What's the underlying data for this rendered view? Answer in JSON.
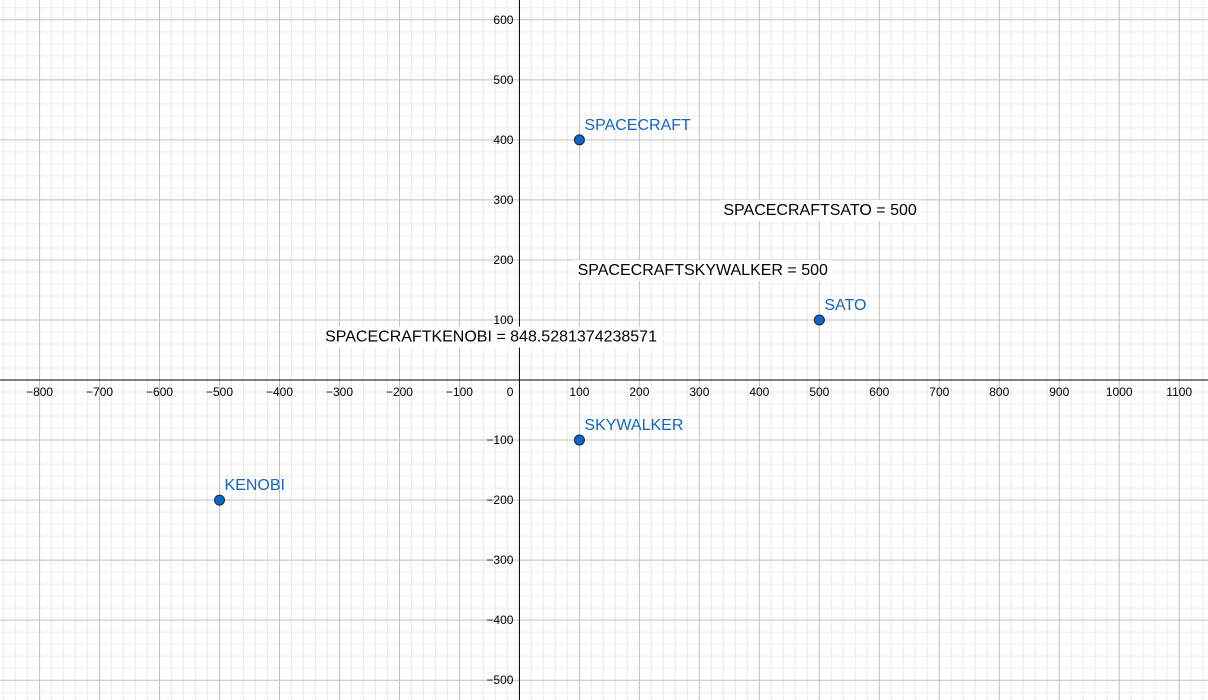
{
  "chart_data": {
    "type": "scatter",
    "title": "",
    "xlabel": "",
    "ylabel": "",
    "xlim": [
      -866,
      1148
    ],
    "ylim": [
      -533,
      633
    ],
    "grid": true,
    "x_ticks": [
      -800,
      -700,
      -600,
      -500,
      -400,
      -300,
      -200,
      -100,
      0,
      100,
      200,
      300,
      400,
      500,
      600,
      700,
      800,
      900,
      1000,
      1100
    ],
    "y_ticks": [
      -500,
      -400,
      -300,
      -200,
      -100,
      100,
      200,
      300,
      400,
      500,
      600
    ],
    "points": [
      {
        "label": "SPACECRAFT",
        "x": 100,
        "y": 400
      },
      {
        "label": "SATO",
        "x": 500,
        "y": 100
      },
      {
        "label": "SKYWALKER",
        "x": 100,
        "y": -100
      },
      {
        "label": "KENOBI",
        "x": -500,
        "y": -200
      }
    ],
    "annotations": [
      {
        "text": "SPACECRAFTSATO = 500",
        "x": 340,
        "y": 275
      },
      {
        "text": "SPACECRAFTSKYWALKER = 500",
        "x": 97,
        "y": 175
      },
      {
        "text": "SPACECRAFTKENOBI = 848.5281374238571",
        "x": -324,
        "y": 64
      }
    ],
    "colors": {
      "point_fill": "#1565c0",
      "point_label": "#1565c0",
      "axis": "#000000",
      "grid_major": "#c0c0c0",
      "grid_minor": "#ececec",
      "text": "#000000"
    }
  }
}
